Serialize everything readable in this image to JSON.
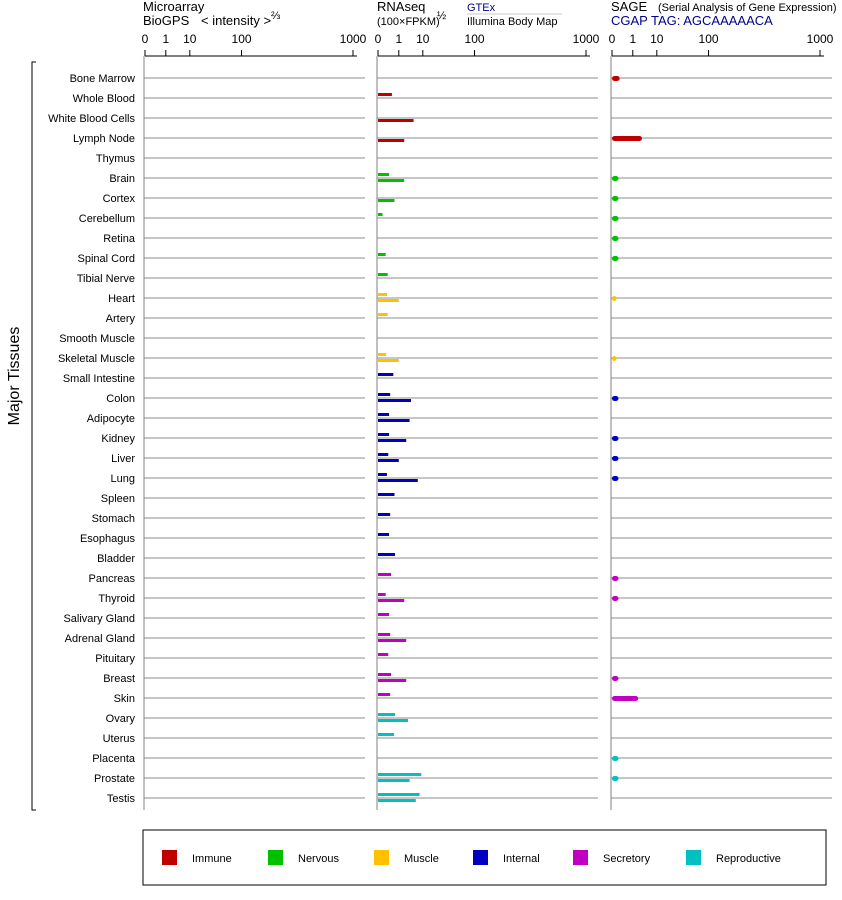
{
  "chart_data": {
    "type": "bar",
    "ylabel": "Major Tissues",
    "panels": [
      {
        "id": "microarray",
        "title_line1": "Microarray",
        "title_line2": "BioGPS",
        "scale_label": "< intensity >",
        "scale_exp": "⅔",
        "ticks": [
          "0",
          "1",
          "10",
          "100",
          "1000"
        ],
        "xlim": [
          0,
          1000
        ]
      },
      {
        "id": "rnaseq",
        "title_line1": "RNAseq",
        "title_line2": "(100×FPKM)",
        "scale_exp": "½",
        "source1": "GTEx",
        "source2": "Illumina Body Map",
        "ticks": [
          "0",
          "1",
          "10",
          "100",
          "1000"
        ],
        "xlim": [
          0,
          1000
        ]
      },
      {
        "id": "sage",
        "title_line1": "SAGE",
        "title_note": "(Serial Analysis of Gene Expression)",
        "title_line2": "CGAP TAG: AGCAAAAACA",
        "ticks": [
          "0",
          "1",
          "10",
          "100",
          "1000"
        ],
        "xlim": [
          0,
          1000
        ]
      }
    ],
    "legend": [
      {
        "name": "Immune",
        "color": "#c00000"
      },
      {
        "name": "Nervous",
        "color": "#00c000"
      },
      {
        "name": "Muscle",
        "color": "#ffc000"
      },
      {
        "name": "Internal",
        "color": "#0000c0"
      },
      {
        "name": "Secretory",
        "color": "#c000c0"
      },
      {
        "name": "Reproductive",
        "color": "#00c0c0"
      }
    ],
    "tissues": [
      {
        "name": "Bone Marrow",
        "group": "Immune",
        "gtex": 0,
        "ibm": 0,
        "sage": 0.05
      },
      {
        "name": "Whole Blood",
        "group": "Immune",
        "gtex": 0.3,
        "ibm": 0,
        "sage": 0
      },
      {
        "name": "White Blood Cells",
        "group": "Immune",
        "gtex": 0,
        "ibm": 5,
        "sage": 0
      },
      {
        "name": "Lymph Node",
        "group": "Immune",
        "gtex": 0,
        "ibm": 2,
        "sage": 3
      },
      {
        "name": "Thymus",
        "group": "Immune",
        "gtex": 0,
        "ibm": 0,
        "sage": 0
      },
      {
        "name": "Brain",
        "group": "Nervous",
        "gtex": 0.15,
        "ibm": 2,
        "sage": 0.03
      },
      {
        "name": "Cortex",
        "group": "Nervous",
        "gtex": 0,
        "ibm": 0.5,
        "sage": 0.03
      },
      {
        "name": "Cerebellum",
        "group": "Nervous",
        "gtex": 0.01,
        "ibm": 0,
        "sage": 0.03
      },
      {
        "name": "Retina",
        "group": "Nervous",
        "gtex": 0,
        "ibm": 0,
        "sage": 0.03
      },
      {
        "name": "Spinal Cord",
        "group": "Nervous",
        "gtex": 0.05,
        "ibm": 0,
        "sage": 0.03
      },
      {
        "name": "Tibial Nerve",
        "group": "Nervous",
        "gtex": 0.1,
        "ibm": 0,
        "sage": 0
      },
      {
        "name": "Heart",
        "group": "Muscle",
        "gtex": 0.08,
        "ibm": 1,
        "sage": 0.01
      },
      {
        "name": "Artery",
        "group": "Muscle",
        "gtex": 0.1,
        "ibm": 0,
        "sage": 0
      },
      {
        "name": "Smooth Muscle",
        "group": "Muscle",
        "gtex": 0,
        "ibm": 0,
        "sage": 0
      },
      {
        "name": "Skeletal Muscle",
        "group": "Muscle",
        "gtex": 0.06,
        "ibm": 1,
        "sage": 0.01
      },
      {
        "name": "Small Intestine",
        "group": "Internal",
        "gtex": 0.4,
        "ibm": 0,
        "sage": 0
      },
      {
        "name": "Colon",
        "group": "Internal",
        "gtex": 0.2,
        "ibm": 4,
        "sage": 0.03
      },
      {
        "name": "Adipocyte",
        "group": "Internal",
        "gtex": 0.15,
        "ibm": 3.5,
        "sage": 0
      },
      {
        "name": "Kidney",
        "group": "Internal",
        "gtex": 0.15,
        "ibm": 2.5,
        "sage": 0.03
      },
      {
        "name": "Liver",
        "group": "Internal",
        "gtex": 0.12,
        "ibm": 1,
        "sage": 0.03
      },
      {
        "name": "Lung",
        "group": "Internal",
        "gtex": 0.08,
        "ibm": 7,
        "sage": 0.03
      },
      {
        "name": "Spleen",
        "group": "Internal",
        "gtex": 0.5,
        "ibm": 0,
        "sage": 0
      },
      {
        "name": "Stomach",
        "group": "Internal",
        "gtex": 0.2,
        "ibm": 0,
        "sage": 0
      },
      {
        "name": "Esophagus",
        "group": "Internal",
        "gtex": 0.15,
        "ibm": 0,
        "sage": 0
      },
      {
        "name": "Bladder",
        "group": "Internal",
        "gtex": 0.55,
        "ibm": 0,
        "sage": 0
      },
      {
        "name": "Pancreas",
        "group": "Secretory",
        "gtex": 0.25,
        "ibm": 0,
        "sage": 0.03
      },
      {
        "name": "Thyroid",
        "group": "Secretory",
        "gtex": 0.05,
        "ibm": 2,
        "sage": 0.03
      },
      {
        "name": "Salivary Gland",
        "group": "Secretory",
        "gtex": 0.15,
        "ibm": 0,
        "sage": 0
      },
      {
        "name": "Adrenal Gland",
        "group": "Secretory",
        "gtex": 0.2,
        "ibm": 2.5,
        "sage": 0
      },
      {
        "name": "Pituitary",
        "group": "Secretory",
        "gtex": 0.12,
        "ibm": 0,
        "sage": 0
      },
      {
        "name": "Breast",
        "group": "Secretory",
        "gtex": 0.25,
        "ibm": 2.5,
        "sage": 0.03
      },
      {
        "name": "Skin",
        "group": "Secretory",
        "gtex": 0.2,
        "ibm": 0,
        "sage": 2
      },
      {
        "name": "Ovary",
        "group": "Reproductive",
        "gtex": 0.55,
        "ibm": 3,
        "sage": 0
      },
      {
        "name": "Uterus",
        "group": "Reproductive",
        "gtex": 0.45,
        "ibm": 0,
        "sage": 0
      },
      {
        "name": "Placenta",
        "group": "Reproductive",
        "gtex": 0,
        "ibm": 0,
        "sage": 0.03
      },
      {
        "name": "Prostate",
        "group": "Reproductive",
        "gtex": 9,
        "ibm": 3.5,
        "sage": 0.03
      },
      {
        "name": "Testis",
        "group": "Reproductive",
        "gtex": 8,
        "ibm": 6,
        "sage": 0
      }
    ]
  }
}
